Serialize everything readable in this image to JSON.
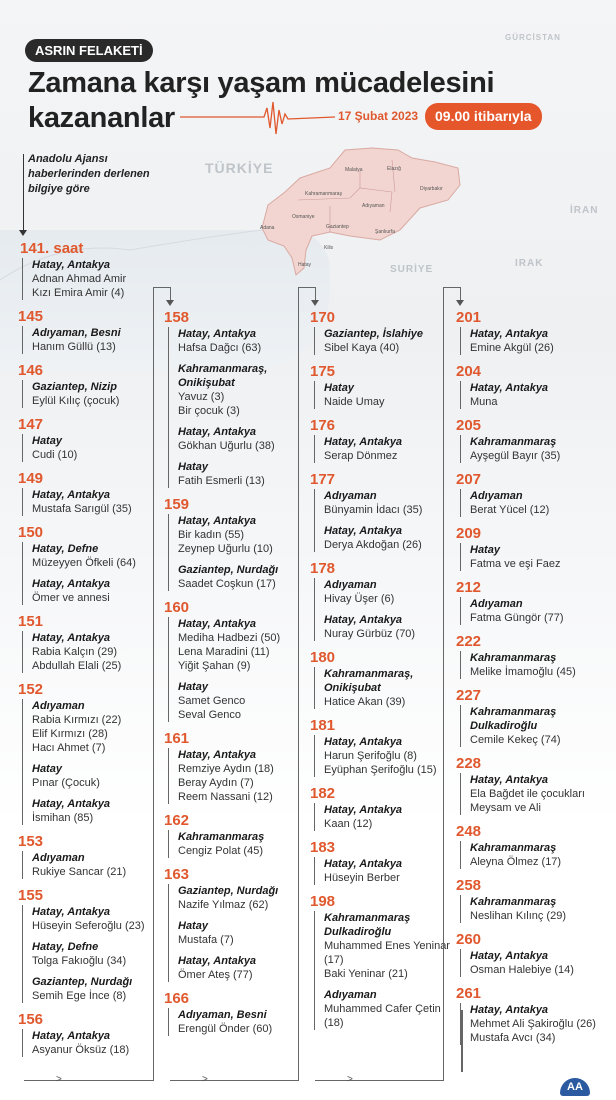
{
  "header": {
    "badge": "ASRIN FELAKETİ",
    "title_line1": "Zamana karşı yaşam mücadelesini",
    "title_line2": "kazananlar",
    "date": "17 Şubat 2023",
    "time_badge": "09.00 itibarıyla"
  },
  "source_note": [
    "Anadolu Ajansı",
    "haberlerinden derlenen",
    "bilgiye göre"
  ],
  "map": {
    "countries": {
      "turkiye": "TÜRKİYE",
      "gurcistan": "GÜRCİSTAN",
      "iran": "İRAN",
      "irak": "IRAK",
      "suriye": "SURİYE"
    },
    "cities": [
      "Malatya",
      "Elazığ",
      "Diyarbakır",
      "Kahramanmaraş",
      "Adıyaman",
      "Osmaniye",
      "Adana",
      "Gaziantep",
      "Şanlıurfa",
      "Kilis",
      "Hatay"
    ]
  },
  "colors": {
    "accent": "#e0582e",
    "dark": "#2a2a2a"
  },
  "first_hour": "141. saat",
  "columns": [
    [
      {
        "hour": "",
        "entries": [
          {
            "location": "Hatay, Antakya",
            "names": [
              "Adnan Ahmad Amir",
              "Kızı Emira Amir (4)"
            ]
          }
        ]
      },
      {
        "hour": "145",
        "entries": [
          {
            "location": "Adıyaman, Besni",
            "names": [
              "Hanım Güllü (13)"
            ]
          }
        ]
      },
      {
        "hour": "146",
        "entries": [
          {
            "location": "Gaziantep, Nizip",
            "names": [
              "Eylül Kılıç (çocuk)"
            ]
          }
        ]
      },
      {
        "hour": "147",
        "entries": [
          {
            "location": "Hatay",
            "names": [
              "Cudi (10)"
            ]
          }
        ]
      },
      {
        "hour": "149",
        "entries": [
          {
            "location": "Hatay, Antakya",
            "names": [
              "Mustafa Sarıgül (35)"
            ]
          }
        ]
      },
      {
        "hour": "150",
        "entries": [
          {
            "location": "Hatay, Defne",
            "names": [
              "Müzeyyen Öfkeli (64)"
            ]
          },
          {
            "location": "Hatay, Antakya",
            "names": [
              "Ömer ve annesi"
            ]
          }
        ]
      },
      {
        "hour": "151",
        "entries": [
          {
            "location": "Hatay, Antakya",
            "names": [
              "Rabia Kalçın (29)",
              "Abdullah Elali (25)"
            ]
          }
        ]
      },
      {
        "hour": "152",
        "entries": [
          {
            "location": "Adıyaman",
            "names": [
              "Rabia Kırmızı (22)",
              "Elif Kırmızı (28)",
              "Hacı Ahmet (7)"
            ]
          },
          {
            "location": "Hatay",
            "names": [
              "Pınar (Çocuk)"
            ]
          },
          {
            "location": "Hatay, Antakya",
            "names": [
              "İsmihan (85)"
            ]
          }
        ]
      },
      {
        "hour": "153",
        "entries": [
          {
            "location": "Adıyaman",
            "names": [
              "Rukiye Sancar (21)"
            ]
          }
        ]
      },
      {
        "hour": "155",
        "entries": [
          {
            "location": "Hatay, Antakya",
            "names": [
              "Hüseyin Seferoğlu (23)"
            ]
          },
          {
            "location": "Hatay, Defne",
            "names": [
              "Tolga Fakıoğlu (34)"
            ]
          },
          {
            "location": "Gaziantep, Nurdağı",
            "names": [
              "Semih Ege İnce (8)"
            ]
          }
        ]
      },
      {
        "hour": "156",
        "entries": [
          {
            "location": "Hatay, Antakya",
            "names": [
              "Asyanur Öksüz (18)"
            ]
          }
        ]
      }
    ],
    [
      {
        "hour": "158",
        "entries": [
          {
            "location": "Hatay, Antakya",
            "names": [
              "Hafsa Dağcı (63)"
            ]
          },
          {
            "location": "Kahramanmaraş, Onikişubat",
            "names": [
              "Yavuz (3)",
              "Bir çocuk (3)"
            ]
          },
          {
            "location": "Hatay, Antakya",
            "names": [
              "Gökhan Uğurlu (38)"
            ]
          },
          {
            "location": "Hatay",
            "names": [
              "Fatih Esmerli (13)"
            ]
          }
        ]
      },
      {
        "hour": "159",
        "entries": [
          {
            "location": "Hatay, Antakya",
            "names": [
              "Bir kadın (55)",
              "Zeynep Uğurlu (10)"
            ]
          },
          {
            "location": "Gaziantep, Nurdağı",
            "names": [
              "Saadet Coşkun (17)"
            ]
          }
        ]
      },
      {
        "hour": "160",
        "entries": [
          {
            "location": "Hatay, Antakya",
            "names": [
              "Mediha Hadbezi (50)",
              "Lena Maradini (11)",
              "Yiğit Şahan (9)"
            ]
          },
          {
            "location": "Hatay",
            "names": [
              "Samet Genco",
              "Seval Genco"
            ]
          }
        ]
      },
      {
        "hour": "161",
        "entries": [
          {
            "location": "Hatay, Antakya",
            "names": [
              "Remziye Aydın (18)",
              "Beray Aydın (7)",
              "Reem Nassani (12)"
            ]
          }
        ]
      },
      {
        "hour": "162",
        "entries": [
          {
            "location": "Kahramanmaraş",
            "names": [
              "Cengiz Polat (45)"
            ]
          }
        ]
      },
      {
        "hour": "163",
        "entries": [
          {
            "location": "Gaziantep, Nurdağı",
            "names": [
              "Nazife Yılmaz (62)"
            ]
          },
          {
            "location": "Hatay",
            "names": [
              "Mustafa (7)"
            ]
          },
          {
            "location": "Hatay, Antakya",
            "names": [
              "Ömer Ateş (77)"
            ]
          }
        ]
      },
      {
        "hour": "166",
        "entries": [
          {
            "location": "Adıyaman, Besni",
            "names": [
              "Erengül Önder (60)"
            ]
          }
        ]
      }
    ],
    [
      {
        "hour": "170",
        "entries": [
          {
            "location": "Gaziantep, İslahiye",
            "names": [
              "Sibel Kaya (40)"
            ]
          }
        ]
      },
      {
        "hour": "175",
        "entries": [
          {
            "location": "Hatay",
            "names": [
              "Naide Umay"
            ]
          }
        ]
      },
      {
        "hour": "176",
        "entries": [
          {
            "location": "Hatay, Antakya",
            "names": [
              "Serap Dönmez"
            ]
          }
        ]
      },
      {
        "hour": "177",
        "entries": [
          {
            "location": "Adıyaman",
            "names": [
              "Bünyamin İdacı (35)"
            ]
          },
          {
            "location": "Hatay, Antakya",
            "names": [
              "Derya Akdoğan (26)"
            ]
          }
        ]
      },
      {
        "hour": "178",
        "entries": [
          {
            "location": "Adıyaman",
            "names": [
              "Hivay Üşer (6)"
            ]
          },
          {
            "location": "Hatay, Antakya",
            "names": [
              "Nuray Gürbüz (70)"
            ]
          }
        ]
      },
      {
        "hour": "180",
        "entries": [
          {
            "location": "Kahramanmaraş, Onikişubat",
            "names": [
              "Hatice Akan (39)"
            ]
          }
        ]
      },
      {
        "hour": "181",
        "entries": [
          {
            "location": "Hatay, Antakya",
            "names": [
              "Harun Şerifoğlu (8)",
              "Eyüphan Şerifoğlu (15)"
            ]
          }
        ]
      },
      {
        "hour": "182",
        "entries": [
          {
            "location": "Hatay, Antakya",
            "names": [
              "Kaan (12)"
            ]
          }
        ]
      },
      {
        "hour": "183",
        "entries": [
          {
            "location": "Hatay, Antakya",
            "names": [
              "Hüseyin Berber"
            ]
          }
        ]
      },
      {
        "hour": "198",
        "entries": [
          {
            "location": "Kahramanmaraş Dulkadiroğlu",
            "names": [
              "Muhammed Enes Yeninar (17)",
              "Baki Yeninar (21)"
            ]
          },
          {
            "location": "Adıyaman",
            "names": [
              "Muhammed Cafer Çetin (18)"
            ]
          }
        ]
      }
    ],
    [
      {
        "hour": "201",
        "entries": [
          {
            "location": "Hatay, Antakya",
            "names": [
              "Emine Akgül (26)"
            ]
          }
        ]
      },
      {
        "hour": "204",
        "entries": [
          {
            "location": "Hatay, Antakya",
            "names": [
              "Muna"
            ]
          }
        ]
      },
      {
        "hour": "205",
        "entries": [
          {
            "location": "Kahramanmaraş",
            "names": [
              "Ayşegül Bayır (35)"
            ]
          }
        ]
      },
      {
        "hour": "207",
        "entries": [
          {
            "location": "Adıyaman",
            "names": [
              "Berat Yücel (12)"
            ]
          }
        ]
      },
      {
        "hour": "209",
        "entries": [
          {
            "location": "Hatay",
            "names": [
              "Fatma ve eşi Faez"
            ]
          }
        ]
      },
      {
        "hour": "212",
        "entries": [
          {
            "location": "Adıyaman",
            "names": [
              "Fatma Güngör (77)"
            ]
          }
        ]
      },
      {
        "hour": "222",
        "entries": [
          {
            "location": "Kahramanmaraş",
            "names": [
              "Melike İmamoğlu (45)"
            ]
          }
        ]
      },
      {
        "hour": "227",
        "entries": [
          {
            "location": "Kahramanmaraş Dulkadiroğlu",
            "names": [
              "Cemile Kekeç (74)"
            ]
          }
        ]
      },
      {
        "hour": "228",
        "entries": [
          {
            "location": "Hatay, Antakya",
            "names": [
              "Ela Bağdet ile çocukları Meysam ve Ali"
            ]
          }
        ]
      },
      {
        "hour": "248",
        "entries": [
          {
            "location": "Kahramanmaraş",
            "names": [
              "Aleyna Ölmez (17)"
            ]
          }
        ]
      },
      {
        "hour": "258",
        "entries": [
          {
            "location": "Kahramanmaraş",
            "names": [
              "Neslihan Kılınç (29)"
            ]
          }
        ]
      },
      {
        "hour": "260",
        "entries": [
          {
            "location": "Hatay, Antakya",
            "names": [
              "Osman Halebiye (14)"
            ]
          }
        ]
      },
      {
        "hour": "261",
        "entries": [
          {
            "location": "Hatay, Antakya",
            "names": [
              "Mehmet Ali Şakiroğlu (26)",
              "Mustafa Avcı (34)"
            ]
          }
        ]
      }
    ]
  ],
  "logo": "AA"
}
